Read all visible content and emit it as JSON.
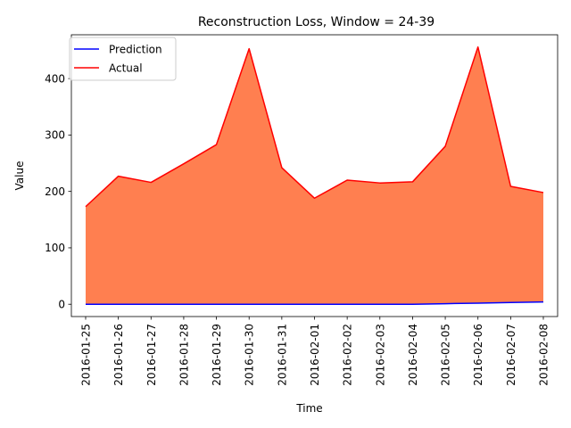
{
  "chart_data": {
    "type": "area",
    "title": "Reconstruction Loss, Window = 24-39",
    "xlabel": "Time",
    "ylabel": "Value",
    "x": [
      "2016-01-25",
      "2016-01-26",
      "2016-01-27",
      "2016-01-28",
      "2016-01-29",
      "2016-01-30",
      "2016-01-31",
      "2016-02-01",
      "2016-02-02",
      "2016-02-03",
      "2016-02-04",
      "2016-02-05",
      "2016-02-06",
      "2016-02-07",
      "2016-02-08"
    ],
    "yticks": [
      0,
      100,
      200,
      300,
      400
    ],
    "ylim": [
      -21.8,
      477.7
    ],
    "grid": false,
    "legend_position": "top-left",
    "fill_color": "#ff7f50",
    "series": [
      {
        "name": "Prediction",
        "color": "#0000ff",
        "values": [
          0,
          0,
          0,
          0,
          0,
          0,
          0,
          0,
          0,
          0,
          0,
          1,
          2,
          3,
          4
        ]
      },
      {
        "name": "Actual",
        "color": "#ff0000",
        "values": [
          173,
          227,
          216,
          249,
          283,
          453,
          242,
          188,
          220,
          215,
          217,
          280,
          456,
          209,
          198
        ]
      }
    ]
  }
}
